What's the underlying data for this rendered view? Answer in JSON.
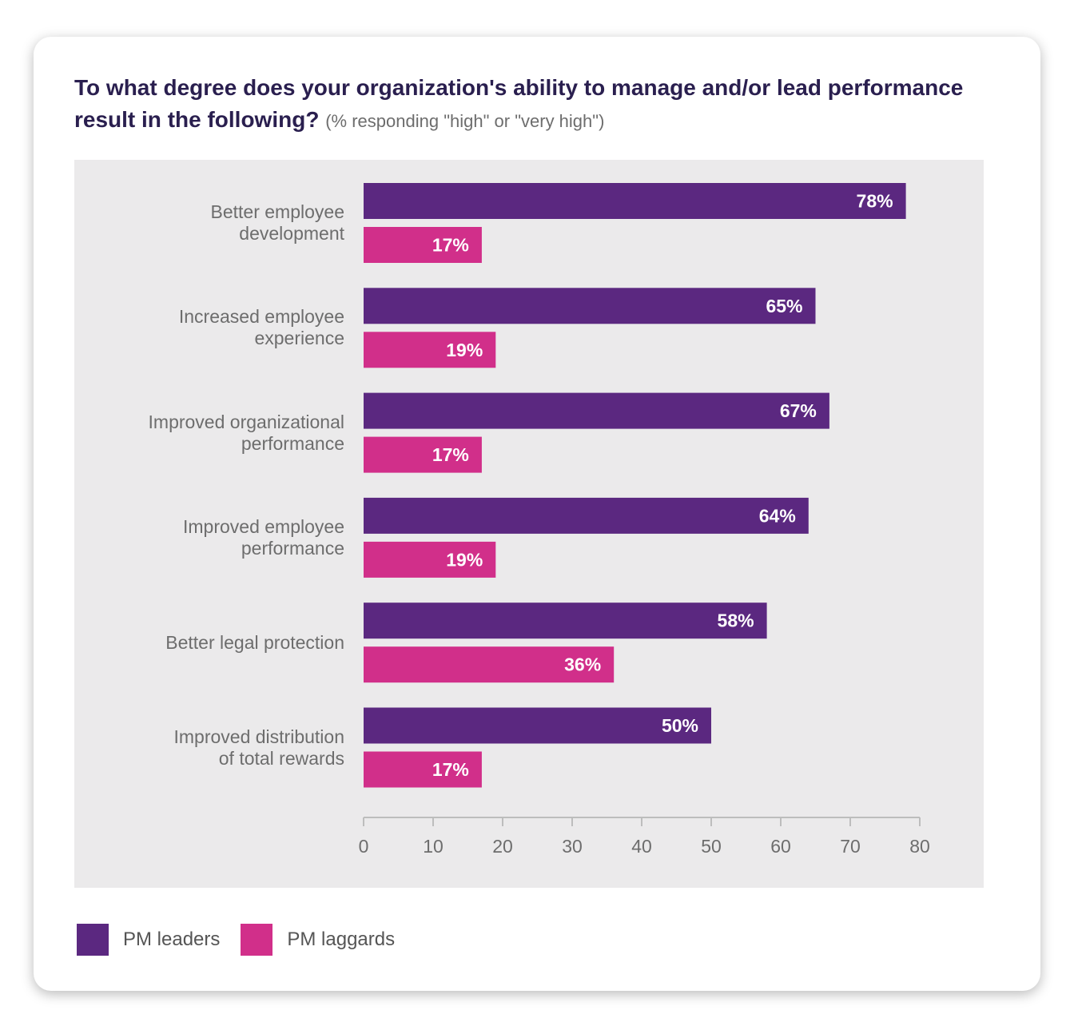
{
  "chart_data": {
    "type": "bar",
    "orientation": "horizontal",
    "title": "To what degree does your organization's ability to manage and/or lead performance result in the following?",
    "subtitle": "(% responding \"high\" or \"very high\")",
    "categories": [
      [
        "Better employee",
        "development"
      ],
      [
        "Increased employee",
        "experience"
      ],
      [
        "Improved organizational",
        "performance"
      ],
      [
        "Improved employee",
        "performance"
      ],
      [
        "Better legal protection"
      ],
      [
        "Improved distribution",
        "of total rewards"
      ]
    ],
    "series": [
      {
        "name": "PM leaders",
        "color": "#5b2880",
        "values": [
          78,
          65,
          67,
          64,
          58,
          50
        ]
      },
      {
        "name": "PM laggards",
        "color": "#d12f8a",
        "values": [
          17,
          19,
          17,
          19,
          36,
          17
        ]
      }
    ],
    "data_label_suffix": "%",
    "xlim": [
      0,
      80
    ],
    "xticks": [
      0,
      10,
      20,
      30,
      40,
      50,
      60,
      70,
      80
    ],
    "xlabel": "",
    "ylabel": "",
    "grid": false,
    "legend": "bottom-left"
  },
  "colors": {
    "background": "#ebeaeb",
    "axis": "#bdbdbd",
    "tick_text": "#6d6d6d",
    "title": "#2a1f4f"
  }
}
